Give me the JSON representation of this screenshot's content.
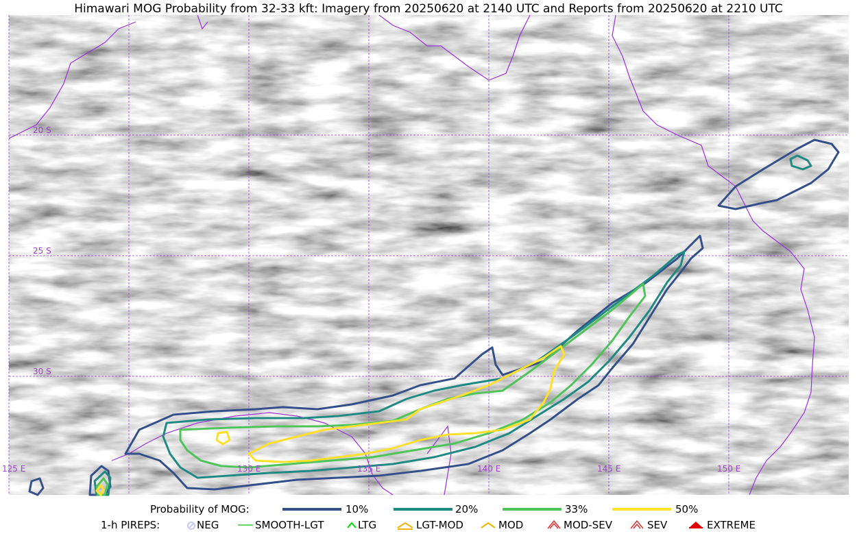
{
  "title": "Himawari MOG Probability from 32-33 kft: Imagery from 20250620 at 2140 UTC and Reports from 20250620 at 2210 UTC",
  "map": {
    "lat_labels": [
      "20 S",
      "25 S",
      "30 S"
    ],
    "lon_labels": [
      "125 E",
      "130 E",
      "135 E",
      "140 E",
      "145 E",
      "150 E"
    ],
    "grid_color": "#9a3fd6",
    "coast_color": "#9b30e0"
  },
  "probability_legend": {
    "label": "Probability of MOG:",
    "items": [
      {
        "label": "10%",
        "color": "#34508a"
      },
      {
        "label": "20%",
        "color": "#1f8a84"
      },
      {
        "label": "33%",
        "color": "#4fc45a"
      },
      {
        "label": "50%",
        "color": "#fde02a"
      }
    ]
  },
  "pirep_legend": {
    "label": "1-h PIREPS:",
    "items": [
      {
        "label": "NEG",
        "icon": "neg-icon",
        "color": "#c8c8ff"
      },
      {
        "label": "SMOOTH-LGT",
        "icon": "smooth-lgt-icon",
        "color": "#33cc33"
      },
      {
        "label": "LTG",
        "icon": "ltg-icon",
        "color": "#00dd00"
      },
      {
        "label": "LGT-MOD",
        "icon": "lgt-mod-icon",
        "color": "#f0b400"
      },
      {
        "label": "MOD",
        "icon": "mod-icon",
        "color": "#f0b400"
      },
      {
        "label": "MOD-SEV",
        "icon": "mod-sev-icon",
        "color": "#e03030"
      },
      {
        "label": "SEV",
        "icon": "sev-icon",
        "color": "#e03030"
      },
      {
        "label": "EXTREME",
        "icon": "extreme-icon",
        "color": "#e00000"
      }
    ]
  }
}
